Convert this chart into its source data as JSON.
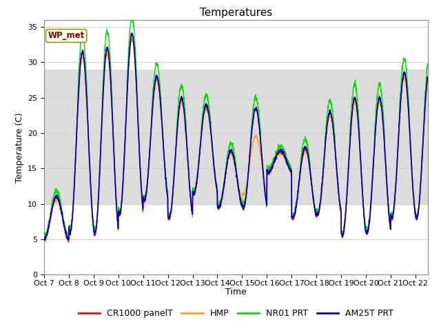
{
  "title": "Temperatures",
  "ylabel": "Temperature (C)",
  "xlabel": "Time",
  "ylim": [
    0,
    36
  ],
  "yticks": [
    0,
    5,
    10,
    15,
    20,
    25,
    30,
    35
  ],
  "x_labels": [
    "Oct 7",
    "Oct 8",
    "Oct 9",
    "Oct 10",
    "Oct 11",
    "Oct 12",
    "Oct 13",
    "Oct 14",
    "Oct 15",
    "Oct 16",
    "Oct 17",
    "Oct 18",
    "Oct 19",
    "Oct 20",
    "Oct 21",
    "Oct 22"
  ],
  "line_colors": {
    "CR1000": "#ff0000",
    "HMP": "#ffa500",
    "NR01": "#00dd00",
    "AM25T": "#0000cc"
  },
  "line_labels": [
    "CR1000 panelT",
    "HMP",
    "NR01 PRT",
    "AM25T PRT"
  ],
  "shaded_band": [
    10,
    29
  ],
  "shaded_color": "#dcdcdc",
  "wp_met_label": "WP_met",
  "wp_met_color": "#8b0000",
  "wp_met_bg": "#fffff0",
  "title_fontsize": 11,
  "axis_fontsize": 9,
  "tick_fontsize": 8,
  "legend_fontsize": 9,
  "days": 15.5,
  "points_per_day": 144,
  "daily_peaks": [
    11.0,
    31.5,
    32.0,
    34.0,
    28.0,
    25.0,
    24.0,
    17.5,
    23.5,
    17.5,
    18.0,
    23.0,
    25.0,
    25.0,
    28.5
  ],
  "daily_mins": [
    5.0,
    6.0,
    5.8,
    8.5,
    10.5,
    8.0,
    11.5,
    9.5,
    9.5,
    14.5,
    8.0,
    8.5,
    5.5,
    6.0,
    8.0
  ],
  "peak_fracs": [
    0.5,
    0.55,
    0.55,
    0.55,
    0.55,
    0.55,
    0.55,
    0.55,
    0.55,
    0.55,
    0.55,
    0.55,
    0.55,
    0.55,
    0.55
  ]
}
